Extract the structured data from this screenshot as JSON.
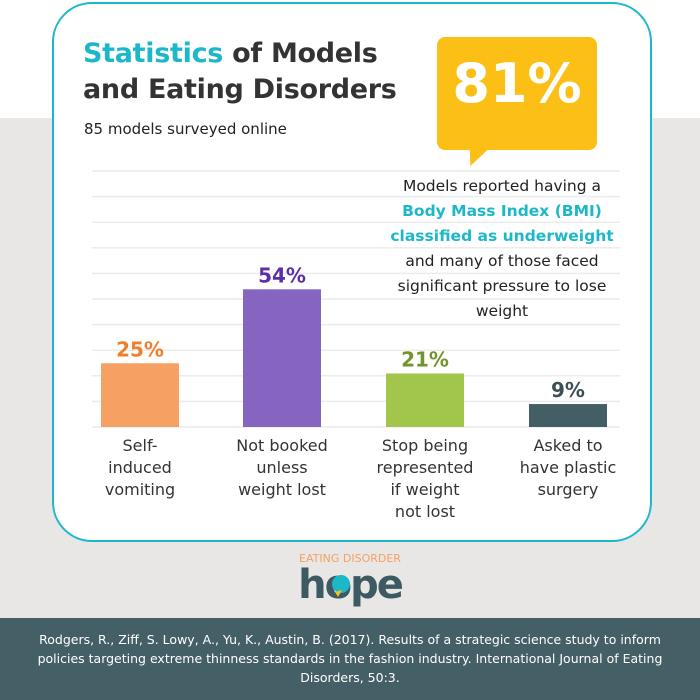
{
  "header": {
    "title_highlight": "Statistics",
    "title_rest_line1": " of Models",
    "title_line2": "and Eating Disorders",
    "subtitle": "85 models surveyed online"
  },
  "callout": {
    "value": "81%",
    "text_before": "Models reported having a",
    "highlight_line1": "Body Mass Index (BMI)",
    "highlight_line2": "classified as underweight",
    "text_after": "and many of those faced significant pressure to lose weight"
  },
  "chart_data": {
    "type": "bar",
    "categories": [
      "Self-induced vomiting",
      "Not booked unless weight lost",
      "Stop being represented if weight not lost",
      "Asked to have plastic surgery"
    ],
    "values": [
      25,
      54,
      21,
      9
    ],
    "data_labels": [
      "25%",
      "54%",
      "21%",
      "9%"
    ],
    "colors": [
      "#f6a063",
      "#8565bf",
      "#a2c64c",
      "#445e66"
    ],
    "label_colors": [
      "#f07f2c",
      "#5b2fa8",
      "#72952a",
      "#3d4f56"
    ],
    "ylim": [
      0,
      100
    ],
    "grid": true
  },
  "category_label_lines": [
    [
      "Self-",
      "induced",
      "vomiting"
    ],
    [
      "Not booked",
      "unless",
      "weight lost"
    ],
    [
      "Stop being",
      "represented",
      "if weight",
      "not lost"
    ],
    [
      "Asked to",
      "have plastic",
      "surgery"
    ]
  ],
  "logo": {
    "top_text": "EATING DISORDER",
    "word": "hope"
  },
  "footer": {
    "citation": "Rodgers, R., Ziff, S. Lowy, A., Yu, K., Austin, B. (2017). Results of a strategic science study to inform policies targeting extreme thinness standards in the fashion industry. International Journal of Eating Disorders, 50:3."
  },
  "colors": {
    "accent": "#1cb8c8",
    "callout": "#fbbf16",
    "footer": "#455f66"
  }
}
